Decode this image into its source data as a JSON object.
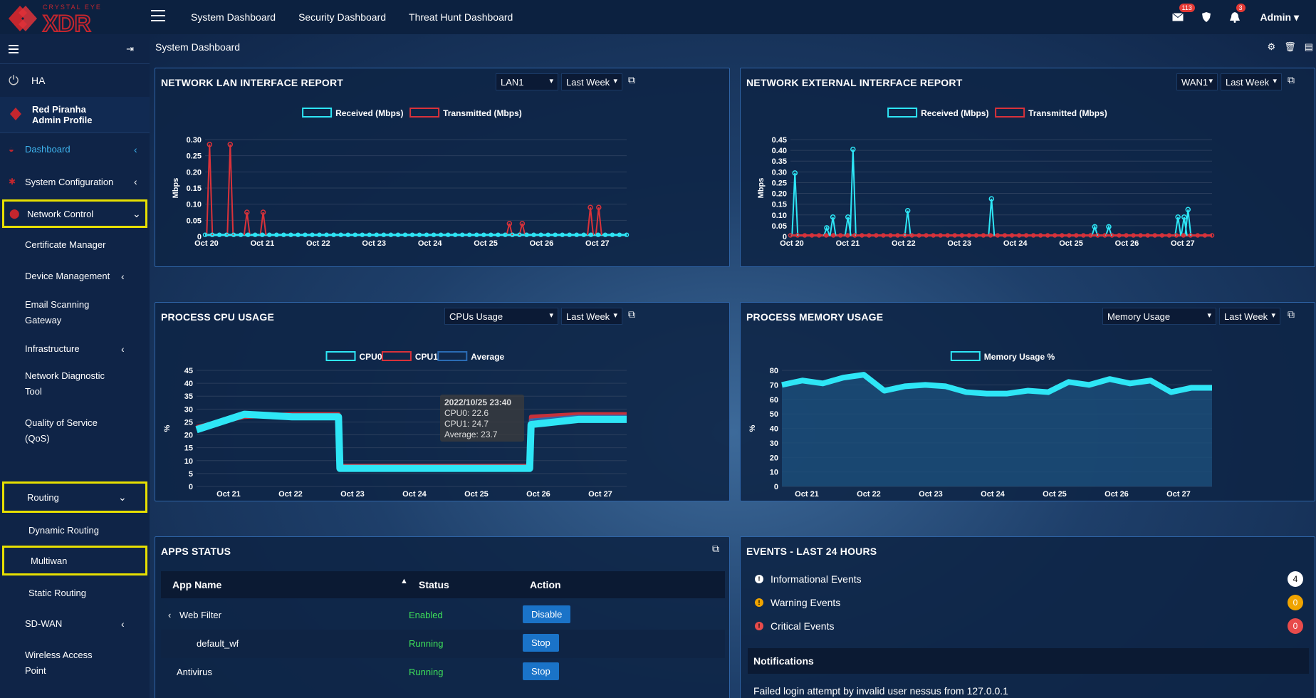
{
  "brand": {
    "line1": "CRYSTAL EYE",
    "line2": "XDR"
  },
  "topnav": [
    "System Dashboard",
    "Security Dashboard",
    "Threat Hunt Dashboard"
  ],
  "topbar": {
    "mail_badge": "113",
    "bell_badge": "3",
    "user": "Admin"
  },
  "sidebar": {
    "ha": "HA",
    "profile_name": "Red Piranha",
    "profile_sub": "Admin Profile",
    "items": {
      "dashboard": "Dashboard",
      "system_config": "System Configuration",
      "network_control": "Network Control",
      "cert_manager": "Certificate Manager",
      "device_mgmt": "Device Management",
      "email_1": "Email Scanning",
      "email_2": "Gateway",
      "infrastructure": "Infrastructure",
      "ndt_1": "Network Diagnostic",
      "ndt_2": "Tool",
      "qos_1": "Quality of Service",
      "qos_2": "(QoS)",
      "routing": "Routing",
      "dynamic_routing": "Dynamic Routing",
      "multiwan": "Multiwan",
      "static_routing": "Static Routing",
      "sdwan": "SD-WAN",
      "wap_1": "Wireless Access",
      "wap_2": "Point"
    }
  },
  "breadcrumb": "System Dashboard",
  "lan_panel": {
    "title": "NETWORK LAN INTERFACE REPORT",
    "iface": "LAN1",
    "period": "Last Week"
  },
  "wan_panel": {
    "title": "NETWORK EXTERNAL INTERFACE REPORT",
    "iface": "WAN1",
    "period": "Last Week"
  },
  "cpu_panel": {
    "title": "PROCESS CPU USAGE",
    "select": "CPUs Usage",
    "period": "Last Week",
    "tooltip": {
      "time": "2022/10/25 23:40",
      "cpu0": "CPU0: 22.6",
      "cpu1": "CPU1: 24.7",
      "avg": "Average: 23.7"
    }
  },
  "mem_panel": {
    "title": "PROCESS MEMORY USAGE",
    "select": "Memory Usage",
    "period": "Last Week"
  },
  "apps": {
    "title": "APPS STATUS",
    "headers": [
      "App Name",
      "Status",
      "Action"
    ],
    "rows": [
      {
        "name": "Web Filter",
        "status": "Enabled",
        "action": "Disable"
      },
      {
        "name": "default_wf",
        "status": "Running",
        "action": "Stop"
      },
      {
        "name": "Antivirus",
        "status": "Running",
        "action": "Stop"
      }
    ]
  },
  "events": {
    "title": "EVENTS - LAST 24 HOURS",
    "rows": [
      {
        "label": "Informational Events",
        "count": "4"
      },
      {
        "label": "Warning Events",
        "count": "0"
      },
      {
        "label": "Critical Events",
        "count": "0"
      }
    ],
    "notifications_label": "Notifications",
    "notification": "Failed login attempt by invalid user nessus from 127.0.0.1"
  },
  "colors": {
    "received": "#2ee6f6",
    "transmitted": "#d9323a",
    "average": "#2a6cb5",
    "accent": "#2f64a6",
    "highlight": "#e8e000"
  },
  "chart_data": [
    {
      "type": "line",
      "title": "NETWORK LAN INTERFACE REPORT",
      "ylabel": "Mbps",
      "ylim": [
        0,
        0.3
      ],
      "yticks": [
        "0",
        "0.05",
        "0.10",
        "0.15",
        "0.20",
        "0.25",
        "0.30"
      ],
      "x_ticks": [
        "Oct 20",
        "Oct 21",
        "Oct 22",
        "Oct 23",
        "Oct 24",
        "Oct 25",
        "Oct 26",
        "Oct 27"
      ],
      "series": [
        {
          "name": "Received (Mbps)",
          "values": [
            0.005,
            0.005,
            0.005,
            0.005,
            0.005,
            0.005,
            0.005,
            0.005
          ]
        },
        {
          "name": "Transmitted (Mbps)",
          "spikes": [
            [
              0.08,
              0.285
            ],
            [
              0.45,
              0.285
            ],
            [
              0.75,
              0.075
            ],
            [
              1.04,
              0.075
            ],
            [
              5.45,
              0.04
            ],
            [
              5.68,
              0.04
            ],
            [
              6.9,
              0.09
            ],
            [
              7.05,
              0.09
            ]
          ]
        }
      ]
    },
    {
      "type": "line",
      "title": "NETWORK EXTERNAL INTERFACE REPORT",
      "ylabel": "Mbps",
      "ylim": [
        0,
        0.45
      ],
      "yticks": [
        "0",
        "0.05",
        "0.10",
        "0.15",
        "0.20",
        "0.25",
        "0.30",
        "0.35",
        "0.40",
        "0.45"
      ],
      "x_ticks": [
        "Oct 20",
        "Oct 21",
        "Oct 22",
        "Oct 23",
        "Oct 24",
        "Oct 25",
        "Oct 26",
        "Oct 27"
      ],
      "series": [
        {
          "name": "Received (Mbps)",
          "spikes": [
            [
              0.08,
              0.295
            ],
            [
              0.65,
              0.04
            ],
            [
              0.76,
              0.09
            ],
            [
              1.03,
              0.09
            ],
            [
              1.12,
              0.405
            ],
            [
              2.1,
              0.12
            ],
            [
              3.6,
              0.175
            ],
            [
              5.45,
              0.045
            ],
            [
              5.7,
              0.045
            ],
            [
              6.94,
              0.09
            ],
            [
              7.05,
              0.09
            ],
            [
              7.12,
              0.125
            ]
          ]
        },
        {
          "name": "Transmitted (Mbps)",
          "values": [
            0.005,
            0.005,
            0.005,
            0.005,
            0.005,
            0.005,
            0.005,
            0.005
          ]
        }
      ]
    },
    {
      "type": "line",
      "title": "PROCESS CPU USAGE",
      "ylabel": "%",
      "ylim": [
        0,
        45
      ],
      "yticks": [
        "0",
        "5",
        "10",
        "15",
        "20",
        "25",
        "30",
        "35",
        "40",
        "45"
      ],
      "x_ticks": [
        "Oct 21",
        "Oct 22",
        "Oct 23",
        "Oct 24",
        "Oct 25",
        "Oct 26",
        "Oct 27"
      ],
      "series": [
        {
          "name": "CPU0",
          "values": [
            22,
            28,
            27,
            7,
            7,
            7,
            7,
            24,
            26,
            26
          ]
        },
        {
          "name": "CPU1",
          "values": [
            23,
            27,
            28,
            8,
            8,
            8,
            8,
            27,
            28,
            28
          ]
        },
        {
          "name": "Average",
          "values": [
            22.5,
            27.5,
            27.5,
            7.5,
            7.5,
            7.5,
            7.5,
            25.5,
            27,
            27
          ]
        }
      ]
    },
    {
      "type": "area",
      "title": "PROCESS MEMORY USAGE",
      "ylabel": "%",
      "ylim": [
        0,
        80
      ],
      "yticks": [
        "0",
        "10",
        "20",
        "30",
        "40",
        "50",
        "60",
        "70",
        "80"
      ],
      "x_ticks": [
        "Oct 21",
        "Oct 22",
        "Oct 23",
        "Oct 24",
        "Oct 25",
        "Oct 26",
        "Oct 27"
      ],
      "series": [
        {
          "name": "Memory Usage %",
          "values": [
            70,
            73,
            71,
            75,
            77,
            66,
            69,
            70,
            69,
            65,
            64,
            64,
            66,
            65,
            72,
            70,
            74,
            71,
            73,
            65,
            68,
            68
          ]
        }
      ]
    }
  ]
}
